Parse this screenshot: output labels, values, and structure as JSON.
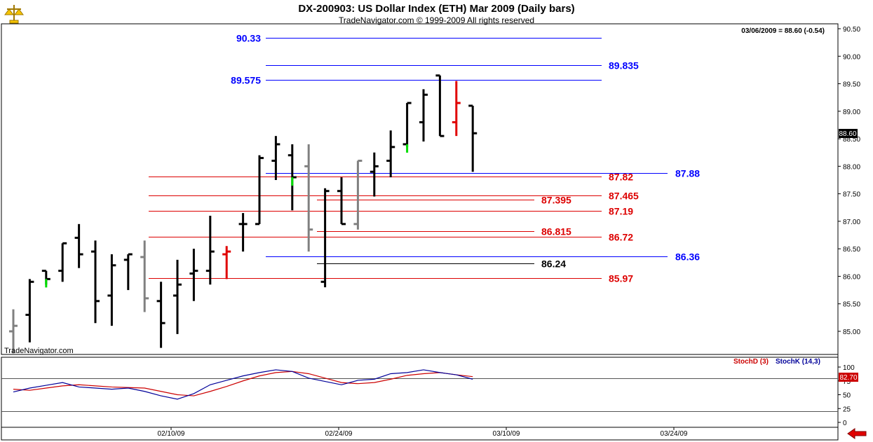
{
  "header": {
    "title": "DX-200903:  US Dollar Index (ETH) Mar 2009  (Daily bars)",
    "subtitle": "TradeNavigator.com © 1999-2009 All rights reserved",
    "last_readout": "03/06/2009 = 88.60 (-0.54)",
    "watermark": "TradeNavigator.com",
    "price_flag": "88.60",
    "stoch_flag": "82.70"
  },
  "colors": {
    "blue_level": "#0000ff",
    "red_level": "#dd0000",
    "black_level": "#000000",
    "bar": "#000000",
    "gray_bar": "#808080",
    "green_tick": "#00dd00",
    "stochD": "#cc0000",
    "stochK": "#000099"
  },
  "chart_data": [
    {
      "type": "ohlc",
      "title": "DX-200903:  US Dollar Index (ETH) Mar 2009  (Daily bars)",
      "ylim": [
        84.7,
        90.6
      ],
      "y_ticks": [
        "90.50",
        "90.00",
        "89.50",
        "89.00",
        "88.50",
        "88.00",
        "87.50",
        "87.00",
        "86.50",
        "86.00",
        "85.50",
        "85.00"
      ],
      "x_ticks": [
        "02/10/09",
        "02/24/09",
        "03/10/09",
        "03/24/09"
      ],
      "last": {
        "date": "03/06/2009",
        "close": 88.6,
        "change": -0.54
      },
      "bars": [
        {
          "o": 85.0,
          "h": 85.4,
          "l": 84.6,
          "c": 85.1,
          "color": "gray"
        },
        {
          "o": 85.3,
          "h": 85.95,
          "l": 84.8,
          "c": 85.9,
          "color": "black"
        },
        {
          "o": 86.1,
          "h": 86.1,
          "l": 85.85,
          "c": 85.95,
          "color": "green"
        },
        {
          "o": 86.1,
          "h": 86.6,
          "l": 85.9,
          "c": 86.6,
          "color": "black"
        },
        {
          "o": 86.7,
          "h": 86.95,
          "l": 86.15,
          "c": 86.4,
          "color": "black"
        },
        {
          "o": 86.45,
          "h": 86.65,
          "l": 85.15,
          "c": 85.55,
          "color": "black"
        },
        {
          "o": 85.65,
          "h": 86.4,
          "l": 85.1,
          "c": 86.2,
          "color": "black"
        },
        {
          "o": 86.3,
          "h": 86.4,
          "l": 85.75,
          "c": 86.4,
          "color": "black"
        },
        {
          "o": 86.35,
          "h": 86.65,
          "l": 85.35,
          "c": 85.6,
          "color": "gray"
        },
        {
          "o": 85.55,
          "h": 85.9,
          "l": 84.7,
          "c": 85.15,
          "color": "black"
        },
        {
          "o": 85.65,
          "h": 86.3,
          "l": 84.95,
          "c": 85.85,
          "color": "black"
        },
        {
          "o": 86.05,
          "h": 86.5,
          "l": 85.55,
          "c": 86.1,
          "color": "black"
        },
        {
          "o": 86.1,
          "h": 87.1,
          "l": 85.85,
          "c": 86.45,
          "color": "black"
        },
        {
          "o": 86.4,
          "h": 86.55,
          "l": 85.95,
          "c": 86.45,
          "color": "red"
        },
        {
          "o": 86.95,
          "h": 87.15,
          "l": 86.45,
          "c": 86.95,
          "color": "black"
        },
        {
          "o": 86.95,
          "h": 88.2,
          "l": 86.95,
          "c": 88.15,
          "color": "black"
        },
        {
          "o": 88.1,
          "h": 88.55,
          "l": 87.75,
          "c": 88.4,
          "color": "black"
        },
        {
          "o": 88.2,
          "h": 88.4,
          "l": 87.2,
          "c": 87.8,
          "color": "green"
        },
        {
          "o": 88.0,
          "h": 88.4,
          "l": 86.45,
          "c": 86.85,
          "color": "gray"
        },
        {
          "o": 85.9,
          "h": 87.6,
          "l": 85.8,
          "c": 87.55,
          "color": "black"
        },
        {
          "o": 87.55,
          "h": 87.8,
          "l": 86.95,
          "c": 86.95,
          "color": "black"
        },
        {
          "o": 86.95,
          "h": 88.1,
          "l": 86.85,
          "c": 88.1,
          "color": "gray"
        },
        {
          "o": 87.9,
          "h": 88.25,
          "l": 87.45,
          "c": 88.0,
          "color": "black"
        },
        {
          "o": 88.1,
          "h": 88.65,
          "l": 87.8,
          "c": 88.35,
          "color": "black"
        },
        {
          "o": 88.4,
          "h": 89.15,
          "l": 88.35,
          "c": 89.15,
          "color": "green"
        },
        {
          "o": 88.8,
          "h": 89.4,
          "l": 88.45,
          "c": 89.3,
          "color": "black"
        },
        {
          "o": 89.65,
          "h": 89.65,
          "l": 88.55,
          "c": 88.55,
          "color": "black"
        },
        {
          "o": 88.8,
          "h": 89.55,
          "l": 88.55,
          "c": 89.15,
          "color": "red"
        },
        {
          "o": 89.1,
          "h": 89.1,
          "l": 87.9,
          "c": 88.6,
          "color": "black"
        }
      ],
      "levels": [
        {
          "label": "90.33",
          "value": 90.33,
          "color": "blue",
          "label_side": "left",
          "extends_to_axis": false
        },
        {
          "label": "89.835",
          "value": 89.835,
          "color": "blue",
          "label_side": "right",
          "extends_to_axis": false
        },
        {
          "label": "89.575",
          "value": 89.575,
          "color": "blue",
          "label_side": "left",
          "extends_to_axis": false
        },
        {
          "label": "87.88",
          "value": 87.88,
          "color": "blue",
          "label_side": "far-right",
          "extends_to_axis": true
        },
        {
          "label": "87.82",
          "value": 87.82,
          "color": "red",
          "label_side": "right",
          "extends_to_axis": false
        },
        {
          "label": "87.465",
          "value": 87.465,
          "color": "red",
          "label_side": "right",
          "extends_to_axis": false
        },
        {
          "label": "87.395",
          "value": 87.395,
          "color": "red",
          "label_side": "left",
          "extends_to_axis": false
        },
        {
          "label": "87.19",
          "value": 87.19,
          "color": "red",
          "label_side": "right",
          "extends_to_axis": false
        },
        {
          "label": "86.815",
          "value": 86.815,
          "color": "red",
          "label_side": "left",
          "extends_to_axis": false
        },
        {
          "label": "86.72",
          "value": 86.72,
          "color": "red",
          "label_side": "right",
          "extends_to_axis": false
        },
        {
          "label": "86.36",
          "value": 86.36,
          "color": "blue",
          "label_side": "far-right",
          "extends_to_axis": true
        },
        {
          "label": "86.24",
          "value": 86.24,
          "color": "black",
          "label_side": "left",
          "extends_to_axis": false
        },
        {
          "label": "85.97",
          "value": 85.97,
          "color": "red",
          "label_side": "right",
          "extends_to_axis": false
        }
      ]
    },
    {
      "type": "line",
      "ylim": [
        0,
        100
      ],
      "y_ticks": [
        "100",
        "75",
        "50",
        "25",
        "0"
      ],
      "reference_lines": [
        80,
        20
      ],
      "series": [
        {
          "name": "StochD (3)",
          "color": "#cc0000",
          "values": [
            60,
            58,
            62,
            66,
            68,
            66,
            64,
            63,
            62,
            56,
            50,
            48,
            56,
            65,
            75,
            84,
            90,
            92,
            88,
            80,
            72,
            70,
            72,
            78,
            85,
            88,
            90,
            86,
            82.7
          ]
        },
        {
          "name": "StochK (14,3)",
          "color": "#000099",
          "values": [
            55,
            62,
            67,
            72,
            64,
            62,
            60,
            62,
            56,
            48,
            42,
            52,
            68,
            76,
            84,
            90,
            95,
            92,
            80,
            74,
            68,
            76,
            78,
            88,
            90,
            95,
            90,
            86,
            78
          ]
        }
      ],
      "last_value": 82.7
    }
  ]
}
